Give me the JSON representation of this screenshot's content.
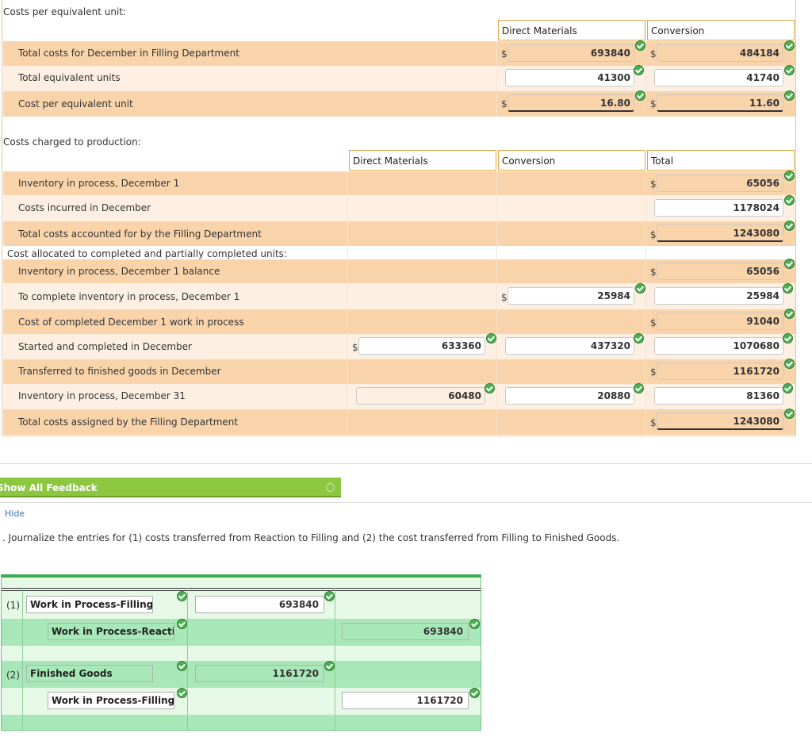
{
  "cost_per_eu": {
    "label": "Costs per equivalent unit:",
    "headers": {
      "dm": "Direct Materials",
      "conv": "Conversion"
    },
    "rows": [
      {
        "label": "Total costs for December in Filling Department",
        "dm_dollar": "$",
        "dm": "693840",
        "conv_dollar": "$",
        "conv": "484184"
      },
      {
        "label": "Total equivalent units",
        "dm": "41300",
        "conv": "41740"
      },
      {
        "label": "Cost per equivalent unit",
        "dm_dollar": "$",
        "dm": "16.80",
        "conv_dollar": "$",
        "conv": "11.60"
      }
    ]
  },
  "costs_charged": {
    "label": "Costs charged to production:",
    "headers": {
      "dm": "Direct Materials",
      "conv": "Conversion",
      "total": "Total"
    },
    "sublabel": "Cost allocated to completed and partially completed units:",
    "rows": [
      {
        "label": "Inventory in process, December 1",
        "total_dollar": "$",
        "total": "65056"
      },
      {
        "label": "Costs incurred in December",
        "total": "1178024"
      },
      {
        "label": "Total costs accounted for by the Filling Department",
        "total_dollar": "$",
        "total": "1243080"
      },
      {
        "label": "Inventory in process, December 1 balance",
        "total_dollar": "$",
        "total": "65056"
      },
      {
        "label": "To complete inventory in process, December 1",
        "conv_dollar": "$",
        "conv": "25984",
        "total": "25984"
      },
      {
        "label": "Cost of completed December 1 work in process",
        "total_dollar": "$",
        "total": "91040"
      },
      {
        "label": "Started and completed in December",
        "dm_dollar": "$",
        "dm": "633360",
        "conv": "437320",
        "total": "1070680"
      },
      {
        "label": "Transferred to finished goods in December",
        "total_dollar": "$",
        "total": "1161720"
      },
      {
        "label": "Inventory in process, December 31",
        "dm": "60480",
        "conv": "20880",
        "total": "81360"
      },
      {
        "label": "Total costs assigned by the Filling Department",
        "total_dollar": "$",
        "total": "1243080"
      }
    ]
  },
  "feedback": {
    "button": "Show All Feedback",
    "hide": "Hide"
  },
  "instruction": ". Journalize the entries for (1) costs transferred from Reaction to Filling and (2) the cost transferred from Filling to Finished Goods.",
  "journal": [
    {
      "num": "(1)",
      "account": "Work in Process-Filling Depa",
      "debit": "693840",
      "credit": ""
    },
    {
      "num": "",
      "account": "Work in Process-Reaction De",
      "debit": "",
      "credit": "693840"
    },
    {
      "num": "(2)",
      "account": "Finished Goods",
      "debit": "1161720",
      "credit": ""
    },
    {
      "num": "",
      "account": "Work in Process-Filling Depa",
      "debit": "",
      "credit": "1161720"
    }
  ],
  "colors": {
    "row_dark": "#f9d4ab",
    "row_light": "#fdf0e2",
    "feedback_green": "#8dc63f",
    "journal_green": "#a8e8b8",
    "check_green": "#4caf50"
  }
}
